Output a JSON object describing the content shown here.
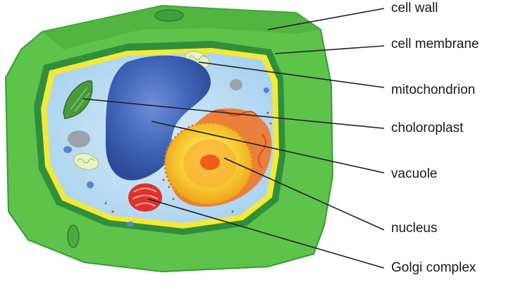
{
  "labels": [
    {
      "id": "cell-wall",
      "text": "cell wall"
    },
    {
      "id": "cell-membrane",
      "text": "cell membrane"
    },
    {
      "id": "mitochondrion",
      "text": "mitochondrion"
    },
    {
      "id": "chloroplast",
      "text": "choloroplast"
    },
    {
      "id": "vacuole",
      "text": "vacuole"
    },
    {
      "id": "nucleus",
      "text": "nucleus"
    },
    {
      "id": "golgi-complex",
      "text": "Golgi complex"
    }
  ],
  "colors": {
    "cell_wall_outer": "#5ec34a",
    "cell_wall_inner": "#2f8f3a",
    "membrane": "#f2e93a",
    "cytoplasm": "#b9dcf2",
    "vacuole": "#3a5fb0",
    "nucleus": "#f7c21f",
    "nucleolus": "#f25a16",
    "golgi": "#e0312b",
    "chloroplast": "#4a9a3a",
    "leader_line": "#222222"
  }
}
